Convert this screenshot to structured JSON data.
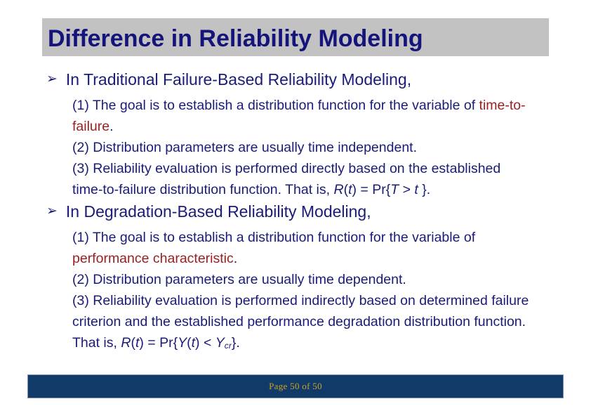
{
  "colors": {
    "navy": "#1b1b78",
    "title-navy": "#14147a",
    "red": "#9a2121",
    "title-bar-bg": "#c2c2c2",
    "footer-bg": "#113a68",
    "footer-border": "#8094b5",
    "footer-gold": "#c7a42d"
  },
  "title": "Difference in Reliability Modeling",
  "bullets": [
    {
      "marker": "➢",
      "heading": "In Traditional Failure-Based Reliability Modeling,",
      "lines": [
        [
          {
            "t": "(1) The goal is to establish a distribution function for the variable of "
          },
          {
            "t": "time-to-",
            "s": "r"
          }
        ],
        [
          {
            "t": "failure",
            "s": "r"
          },
          {
            "t": "."
          }
        ],
        [
          {
            "t": "(2) Distribution parameters are usually time independent."
          }
        ],
        [
          {
            "t": "(3) Reliability evaluation is performed directly based on the established"
          }
        ],
        [
          {
            "t": "time-to-failure distribution function. That is, "
          },
          {
            "t": "R",
            "s": "i"
          },
          {
            "t": "("
          },
          {
            "t": "t",
            "s": "i"
          },
          {
            "t": ") = Pr{"
          },
          {
            "t": "T",
            "s": "i"
          },
          {
            "t": " > "
          },
          {
            "t": "t",
            "s": "i"
          },
          {
            "t": " }."
          }
        ]
      ]
    },
    {
      "marker": "➢",
      "heading": "In Degradation-Based Reliability Modeling,",
      "lines": [
        [
          {
            "t": "(1) The goal is to establish a distribution function for the variable of"
          }
        ],
        [
          {
            "t": "performance characteristic",
            "s": "r"
          },
          {
            "t": "."
          }
        ],
        [
          {
            "t": "(2) Distribution parameters are usually time dependent."
          }
        ],
        [
          {
            "t": "(3) Reliability evaluation is performed indirectly based on determined failure"
          }
        ],
        [
          {
            "t": "criterion and the established performance degradation distribution function."
          }
        ],
        [
          {
            "t": "That is, "
          },
          {
            "t": "R",
            "s": "i"
          },
          {
            "t": "("
          },
          {
            "t": "t",
            "s": "i"
          },
          {
            "t": ") = Pr{"
          },
          {
            "t": "Y",
            "s": "i"
          },
          {
            "t": "("
          },
          {
            "t": "t",
            "s": "i"
          },
          {
            "t": ") < "
          },
          {
            "t": "Y",
            "s": "i"
          },
          {
            "t": "cr",
            "s": "sub"
          },
          {
            "t": "}."
          }
        ]
      ]
    }
  ],
  "footer": {
    "page_label": "Page 50 of 50"
  }
}
